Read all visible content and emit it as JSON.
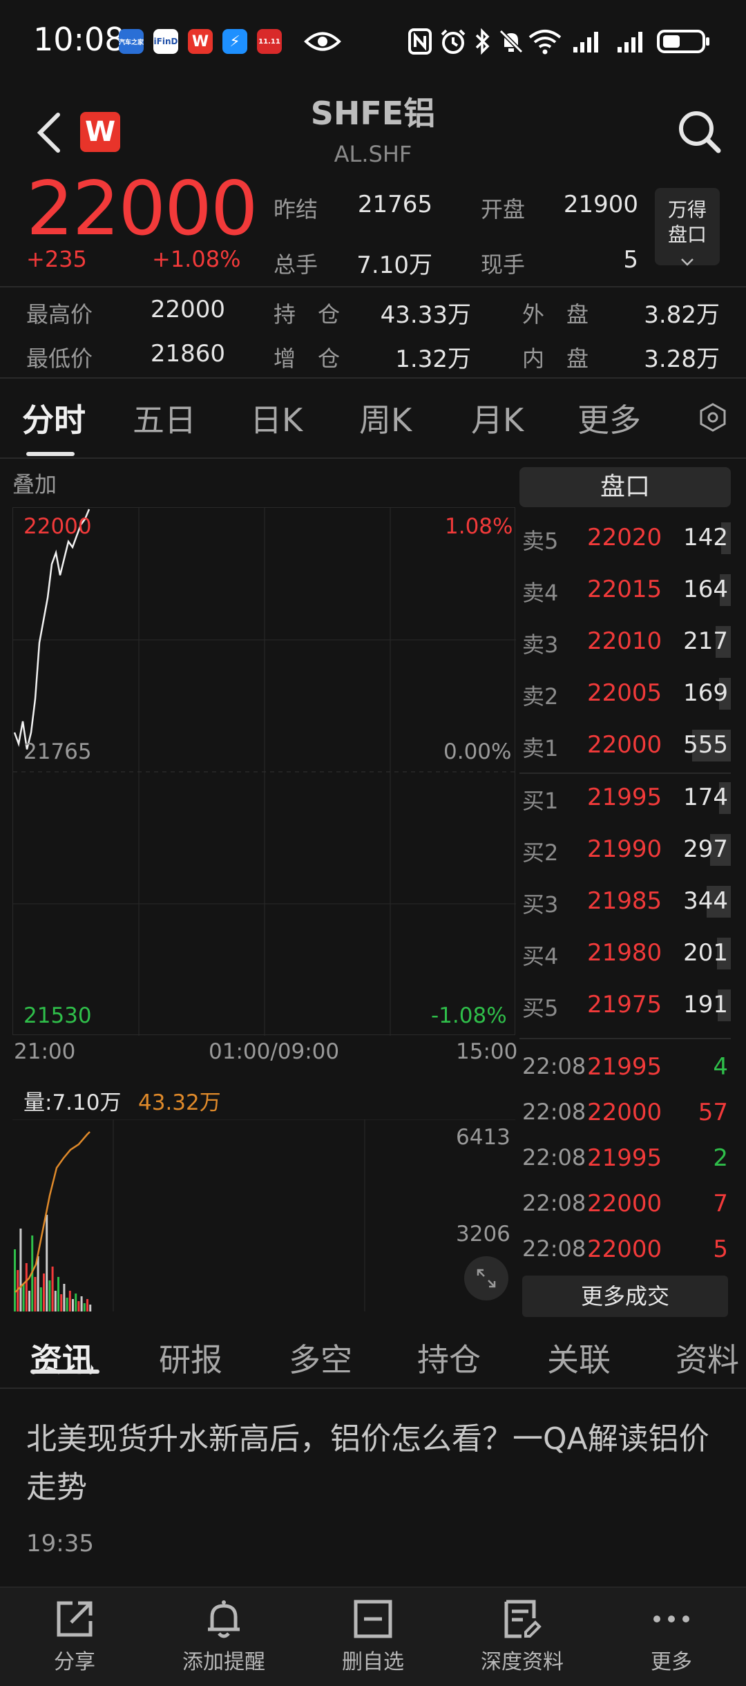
{
  "status": {
    "time": "10:08",
    "app_icons": [
      "汽车之家",
      "iFinD",
      "W",
      "⚡",
      "11.11"
    ]
  },
  "header": {
    "title": "SHFE铝",
    "subtitle": "AL.SHF"
  },
  "quote": {
    "last": "22000",
    "change_abs": "+235",
    "change_pct": "+1.08%",
    "prev_settle_label": "昨结",
    "prev_settle": "21765",
    "open_label": "开盘",
    "open": "21900",
    "volume_label": "总手",
    "volume": "7.10万",
    "current_label": "现手",
    "current": "5",
    "high_label": "最高价",
    "high": "22000",
    "low_label": "最低价",
    "low": "21860",
    "oi_label": "持　仓",
    "oi": "43.33万",
    "oi_chg_label": "增　仓",
    "oi_chg": "1.32万",
    "outer_label": "外　盘",
    "outer": "3.82万",
    "inner_label": "内　盘",
    "inner": "3.28万",
    "pankou_button": "万得\n盘口"
  },
  "chart_tabs": [
    "分时",
    "五日",
    "日K",
    "周K",
    "月K",
    "更多"
  ],
  "chart": {
    "overlay_label": "叠加",
    "price_top": "22000",
    "pct_top": "1.08%",
    "price_mid": "21765",
    "pct_mid": "0.00%",
    "price_bottom": "21530",
    "pct_bottom": "-1.08%",
    "time_start": "21:00",
    "time_mid": "01:00/09:00",
    "time_end": "15:00",
    "vol_label": "量:7.10万",
    "oi_label": "43.32万",
    "vol_top": "6413",
    "vol_mid": "3206"
  },
  "chart_data": {
    "type": "line",
    "x": [
      "21:00",
      "01:00/09:00",
      "15:00"
    ],
    "ylim": [
      21530,
      22000
    ],
    "price_series": [
      21800,
      21790,
      21810,
      21785,
      21800,
      21830,
      21880,
      21900,
      21920,
      21950,
      21960,
      21940,
      21955,
      21970,
      21965,
      21975,
      21985,
      21990,
      22000
    ]
  },
  "orderbook": {
    "title": "盘口",
    "asks": [
      {
        "label": "卖5",
        "price": "22020",
        "vol": "142",
        "level": 0.25
      },
      {
        "label": "卖4",
        "price": "22015",
        "vol": "164",
        "level": 0.29
      },
      {
        "label": "卖3",
        "price": "22010",
        "vol": "217",
        "level": 0.39
      },
      {
        "label": "卖2",
        "price": "22005",
        "vol": "169",
        "level": 0.3
      },
      {
        "label": "卖1",
        "price": "22000",
        "vol": "555",
        "level": 1.0
      }
    ],
    "bids": [
      {
        "label": "买1",
        "price": "21995",
        "vol": "174",
        "level": 0.31
      },
      {
        "label": "买2",
        "price": "21990",
        "vol": "297",
        "level": 0.53
      },
      {
        "label": "买3",
        "price": "21985",
        "vol": "344",
        "level": 0.62
      },
      {
        "label": "买4",
        "price": "21980",
        "vol": "201",
        "level": 0.36
      },
      {
        "label": "买5",
        "price": "21975",
        "vol": "191",
        "level": 0.34
      }
    ],
    "trades": [
      {
        "time": "22:08",
        "price": "21995",
        "vol": "4",
        "side": "sell"
      },
      {
        "time": "22:08",
        "price": "22000",
        "vol": "57",
        "side": "buy"
      },
      {
        "time": "22:08",
        "price": "21995",
        "vol": "2",
        "side": "sell"
      },
      {
        "time": "22:08",
        "price": "22000",
        "vol": "7",
        "side": "buy"
      },
      {
        "time": "22:08",
        "price": "22000",
        "vol": "5",
        "side": "buy"
      }
    ],
    "more_trades": "更多成交"
  },
  "news_tabs": [
    "资讯",
    "研报",
    "多空",
    "持仓",
    "关联",
    "资料"
  ],
  "news": {
    "title": "北美现货升水新高后，铝价怎么看？一QA解读铝价走势",
    "time": "19:35"
  },
  "toolbar": {
    "share": "分享",
    "alert": "添加提醒",
    "remove": "删自选",
    "deep": "深度资料",
    "more": "更多"
  },
  "colors": {
    "up": "#f23a3a",
    "down": "#2fbf4a",
    "background": "#141414"
  }
}
